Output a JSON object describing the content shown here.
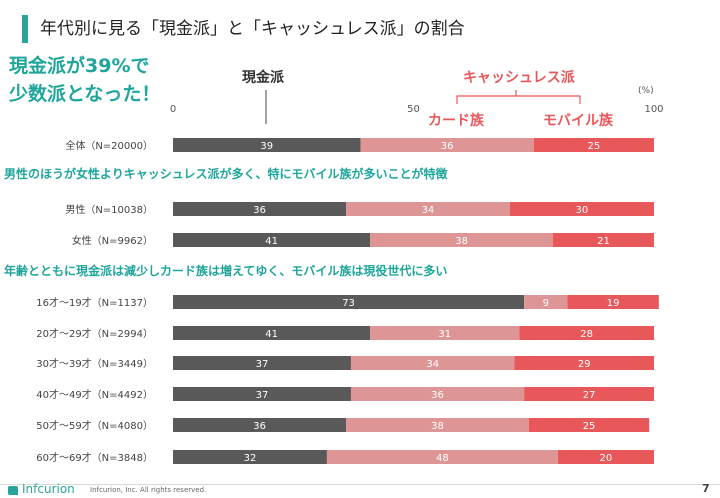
{
  "title": "年代別に見る「現金派」と「キャッシュレス派」の割合",
  "callout": [
    "現金派が39%で",
    "少数派となった！"
  ],
  "labels": {
    "cash": "現金派",
    "cashless": "キャッシュレス派",
    "card": "カード族",
    "mobile": "モバイル族",
    "unit": "(%)"
  },
  "sections": {
    "gender": "男性のほうが女性よりキャッシュレス派が多く、特にモバイル族が多いことが特徴",
    "age": "年齢とともに現金派は減少しカード族は増えてゆく、モバイル族は現役世代に多い"
  },
  "colors": {
    "accent": "#1fa59c",
    "cash": "#595959",
    "card": "#de9595",
    "mobile": "#e8585b",
    "cashless_label": "#e8585b"
  },
  "footer": {
    "logo": "Infcurion",
    "copyright": "Infcurion, Inc.  All rights reserved.",
    "page": "7"
  },
  "chart_data": {
    "type": "bar",
    "orientation": "horizontal",
    "stacked": true,
    "xlim": [
      0,
      100
    ],
    "xticks": [
      "0",
      "50",
      "100"
    ],
    "series_names": [
      "現金派",
      "カード族",
      "モバイル族"
    ],
    "categories": [
      "全体（N=20000）",
      "男性（N=10038）",
      "女性（N=9962）",
      "16才〜19才（N=1137）",
      "20才〜29才（N=2994）",
      "30才〜39才（N=3449）",
      "40才〜49才（N=4492）",
      "50才〜59才（N=4080）",
      "60才〜69才（N=3848）"
    ],
    "series": [
      {
        "name": "現金派",
        "values": [
          39,
          36,
          41,
          73,
          41,
          37,
          37,
          36,
          32
        ]
      },
      {
        "name": "カード族",
        "values": [
          36,
          34,
          38,
          9,
          31,
          34,
          36,
          38,
          48
        ]
      },
      {
        "name": "モバイル族",
        "values": [
          25,
          30,
          21,
          19,
          28,
          29,
          27,
          25,
          20
        ]
      }
    ]
  }
}
